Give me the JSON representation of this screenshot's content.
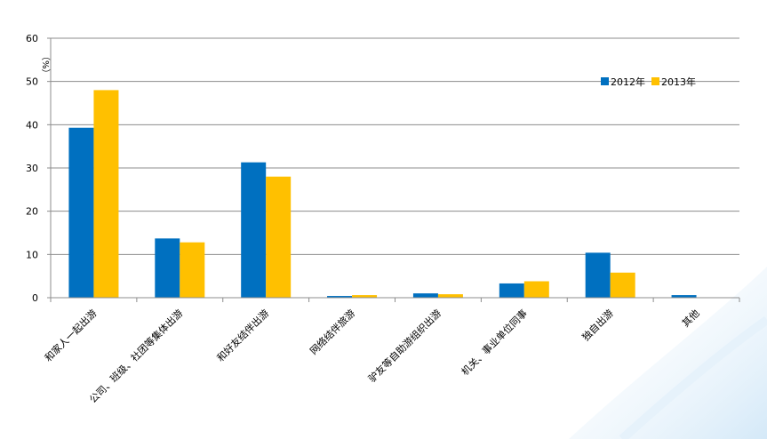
{
  "chart_data": {
    "type": "bar",
    "title": "",
    "xlabel": "",
    "ylabel": "（%）",
    "ylim": [
      0,
      60
    ],
    "yticks": [
      0,
      10,
      20,
      30,
      40,
      50,
      60
    ],
    "grid": true,
    "legend_position": "top-right",
    "categories": [
      "和家人一起出游",
      "公司、班级、社团等集体出游",
      "和好友结伴出游",
      "网络结伴旅游",
      "驴友等自助游组织出游",
      "机关、事业单位同事",
      "独自出游",
      "其他"
    ],
    "series": [
      {
        "name": "2012年",
        "color": "#0070C0",
        "values": [
          39.3,
          13.7,
          31.3,
          0.4,
          1.0,
          3.3,
          10.4,
          0.6
        ]
      },
      {
        "name": "2013年",
        "color": "#FFC000",
        "values": [
          48.0,
          12.8,
          28.0,
          0.6,
          0.8,
          3.8,
          5.8,
          null
        ]
      }
    ]
  }
}
